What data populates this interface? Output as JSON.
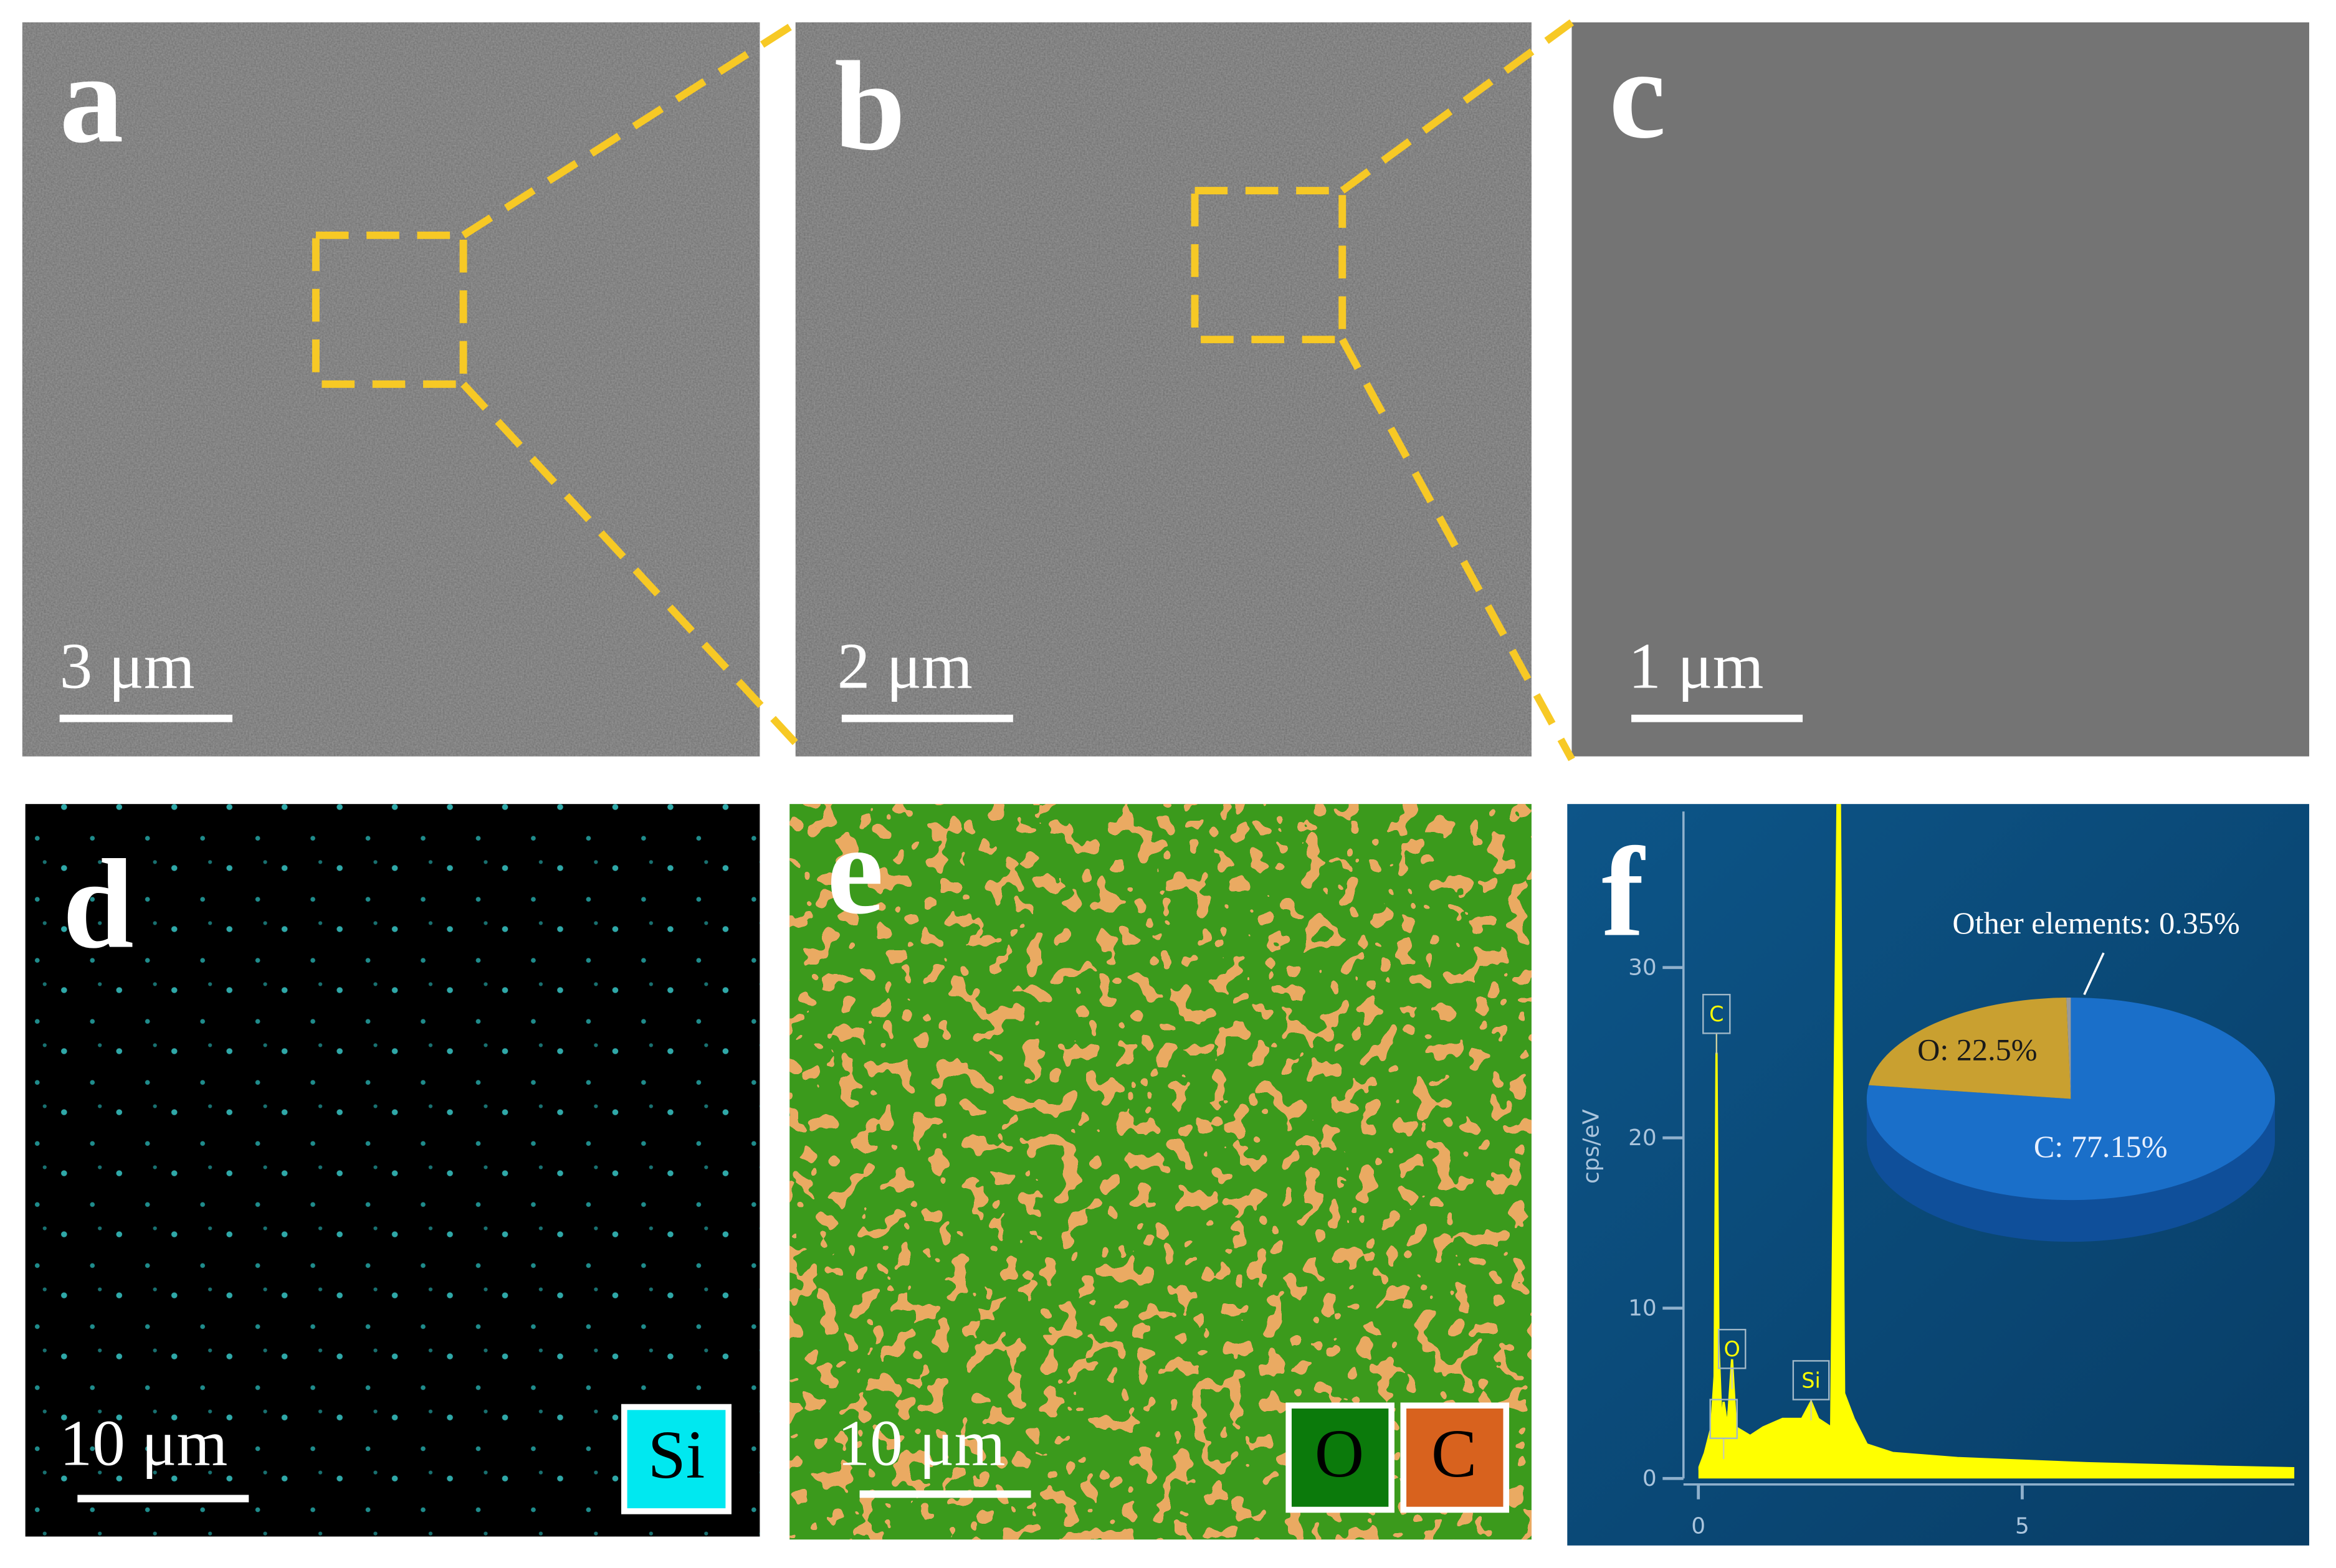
{
  "panels": [
    {
      "label": "a",
      "scale_bar": "3 μm"
    },
    {
      "label": "b",
      "scale_bar": "2 μm"
    },
    {
      "label": "c",
      "scale_bar": "1 μm"
    },
    {
      "label": "d",
      "scale_bar": "10 μm",
      "legend": [
        "Si"
      ]
    },
    {
      "label": "e",
      "scale_bar": "10 μm",
      "legend": [
        "O",
        "C"
      ]
    }
  ],
  "chart_data": {
    "type": "spectrum",
    "label": "f",
    "y_label": "cps/eV",
    "color": "#ffff00",
    "xlim": [
      0,
      9.2
    ],
    "xticks": [
      0,
      5
    ],
    "ylim": [
      0,
      39.6
    ],
    "yticks": [
      0,
      10,
      20,
      30
    ],
    "x": [
      0,
      0.1,
      0.2,
      0.25,
      0.28,
      0.31,
      0.36,
      0.39,
      0.45,
      0.52,
      0.58,
      0.8,
      1.0,
      1.3,
      1.6,
      1.74,
      1.85,
      2.05,
      2.17,
      2.25,
      2.4,
      2.6,
      3,
      4,
      6,
      8,
      9.2
    ],
    "values": [
      0.5,
      1.5,
      3,
      6,
      25,
      8,
      3,
      4.5,
      3,
      7,
      3,
      2.5,
      3,
      3.5,
      3.5,
      4.5,
      3.5,
      3,
      48,
      5,
      3.5,
      2,
      1.5,
      1.2,
      0.9,
      0.7,
      0.6
    ],
    "peaks": [
      {
        "name": "C",
        "x": 0.28
      },
      {
        "name": "O",
        "x": 0.52
      },
      {
        "name": "N",
        "x": 0.39
      },
      {
        "name": "Si",
        "x": 1.74
      }
    ],
    "pie": {
      "values": [
        77.15,
        22.5,
        0.35
      ],
      "value_labels": [
        "C:  77.15%",
        "O:  22.5%",
        "Other elements: 0.35%"
      ],
      "colors": [
        "#1a6fc9",
        "#c9a030",
        "#9a9a9a"
      ]
    }
  }
}
